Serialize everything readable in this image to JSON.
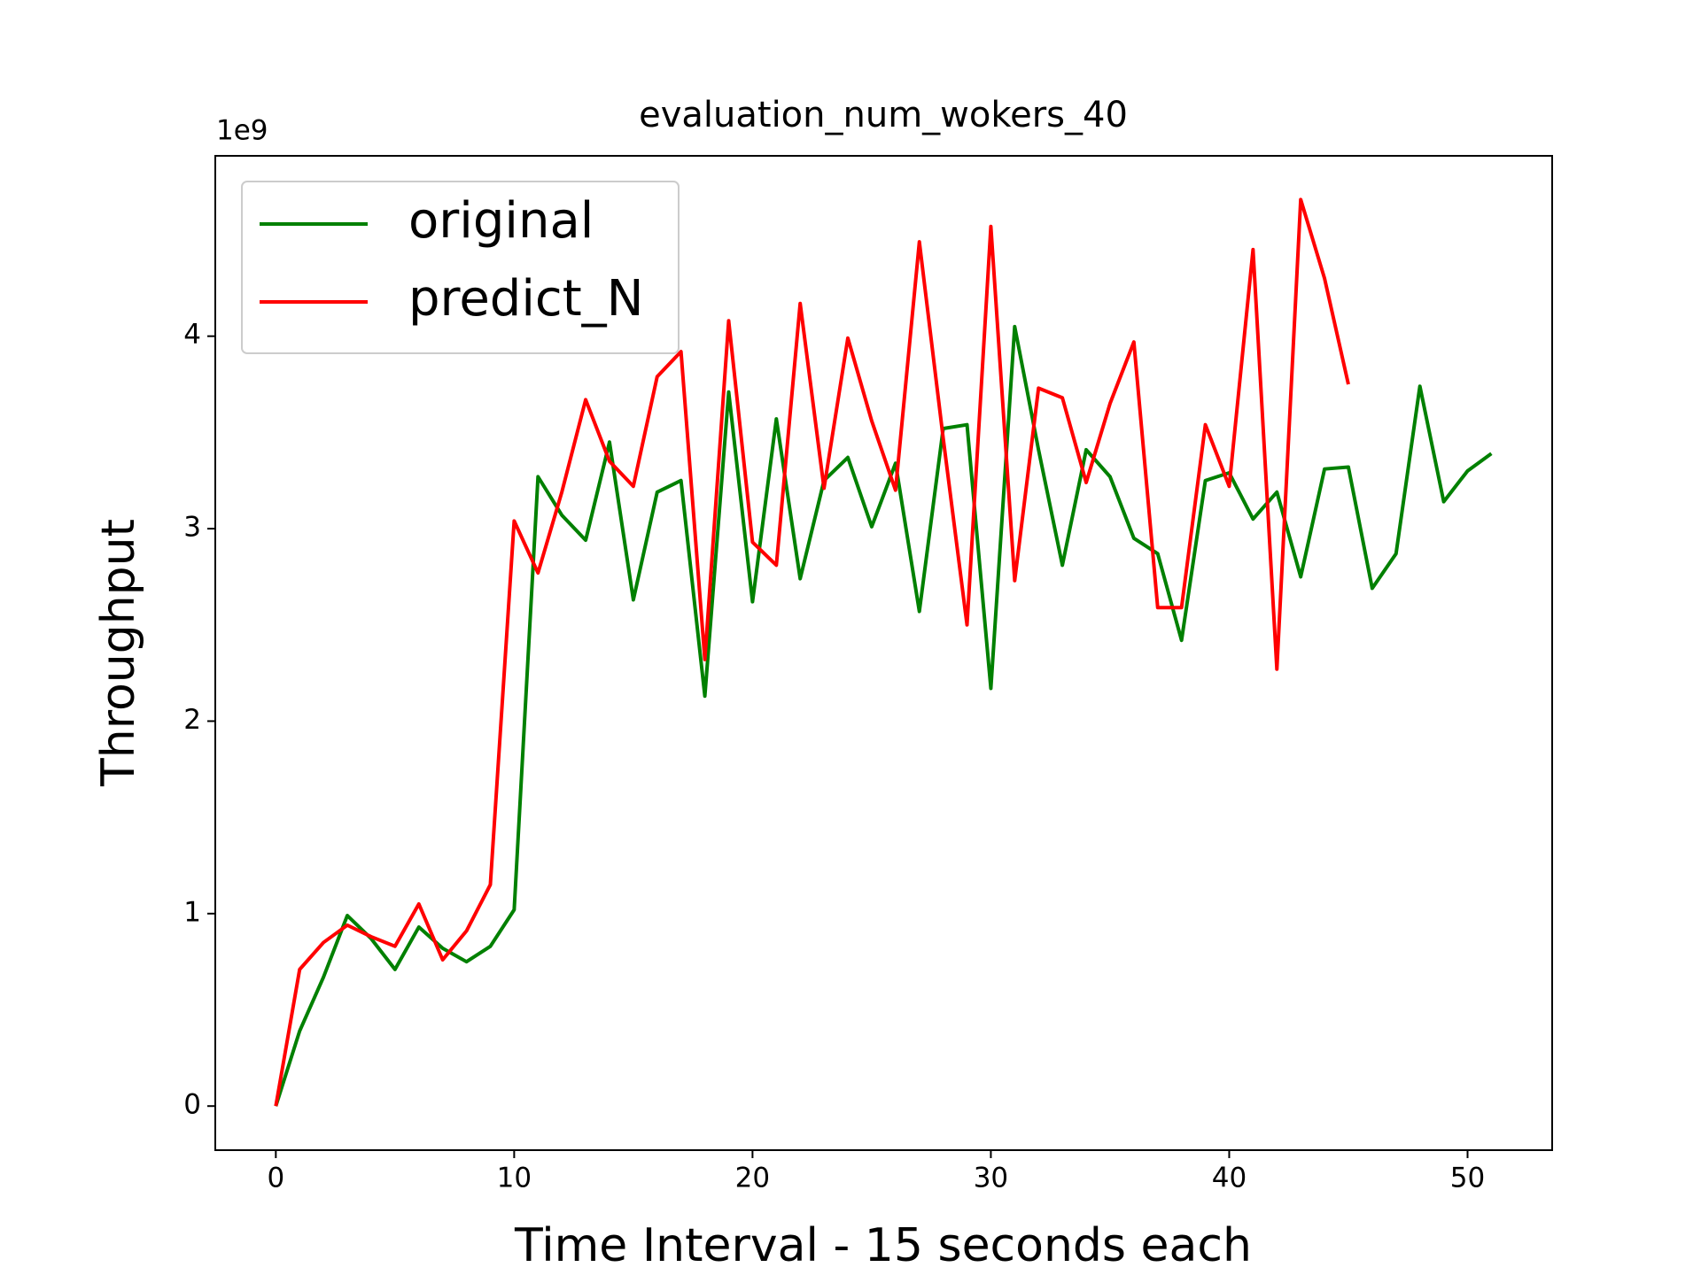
{
  "chart_data": {
    "type": "line",
    "title": "evaluation_num_wokers_40",
    "x_label": "Time Interval - 15 seconds each",
    "y_label": "Throughput",
    "y_offset_label": "1e9",
    "x": [
      0,
      1,
      2,
      3,
      4,
      5,
      6,
      7,
      8,
      9,
      10,
      11,
      12,
      13,
      14,
      15,
      16,
      17,
      18,
      19,
      20,
      21,
      22,
      23,
      24,
      25,
      26,
      27,
      28,
      29,
      30,
      31,
      32,
      33,
      34,
      35,
      36,
      37,
      38,
      39,
      40,
      41,
      42,
      43,
      44,
      45,
      46,
      47,
      48,
      49,
      50,
      51
    ],
    "series": [
      {
        "name": "original",
        "color": "#008000",
        "values": [
          0,
          0.39,
          0.67,
          0.99,
          0.87,
          0.71,
          0.93,
          0.82,
          0.75,
          0.83,
          1.02,
          3.27,
          3.07,
          2.94,
          3.45,
          2.63,
          3.19,
          3.25,
          2.13,
          3.71,
          2.62,
          3.57,
          2.74,
          3.25,
          3.37,
          3.01,
          3.34,
          2.57,
          3.52,
          3.54,
          2.17,
          4.05,
          3.41,
          2.81,
          3.41,
          3.27,
          2.95,
          2.87,
          2.42,
          3.25,
          3.29,
          3.05,
          3.19,
          2.75,
          3.31,
          3.32,
          2.69,
          2.87,
          3.74,
          3.14,
          3.3,
          3.39
        ]
      },
      {
        "name": "predict_N",
        "color": "#ff0000",
        "values": [
          0,
          0.71,
          0.85,
          0.94,
          0.88,
          0.83,
          1.05,
          0.76,
          0.91,
          1.15,
          3.04,
          2.77,
          3.19,
          3.67,
          3.35,
          3.22,
          3.79,
          3.92,
          2.32,
          4.08,
          2.93,
          2.81,
          4.17,
          3.21,
          3.99,
          3.56,
          3.2,
          4.49,
          3.47,
          2.5,
          4.57,
          2.73,
          3.73,
          3.68,
          3.24,
          3.65,
          3.97,
          2.59,
          2.59,
          3.54,
          3.22,
          4.45,
          2.27,
          4.71,
          4.3,
          3.75,
          null,
          null,
          null,
          null,
          null,
          null
        ]
      }
    ],
    "xlim": [
      -2.54,
      53.55
    ],
    "ylim": [
      -0.229,
      4.937
    ],
    "xticks": [
      0,
      10,
      20,
      30,
      40,
      50
    ],
    "yticks": [
      0,
      1,
      2,
      3,
      4
    ],
    "grid": false,
    "legend": "upper left"
  }
}
